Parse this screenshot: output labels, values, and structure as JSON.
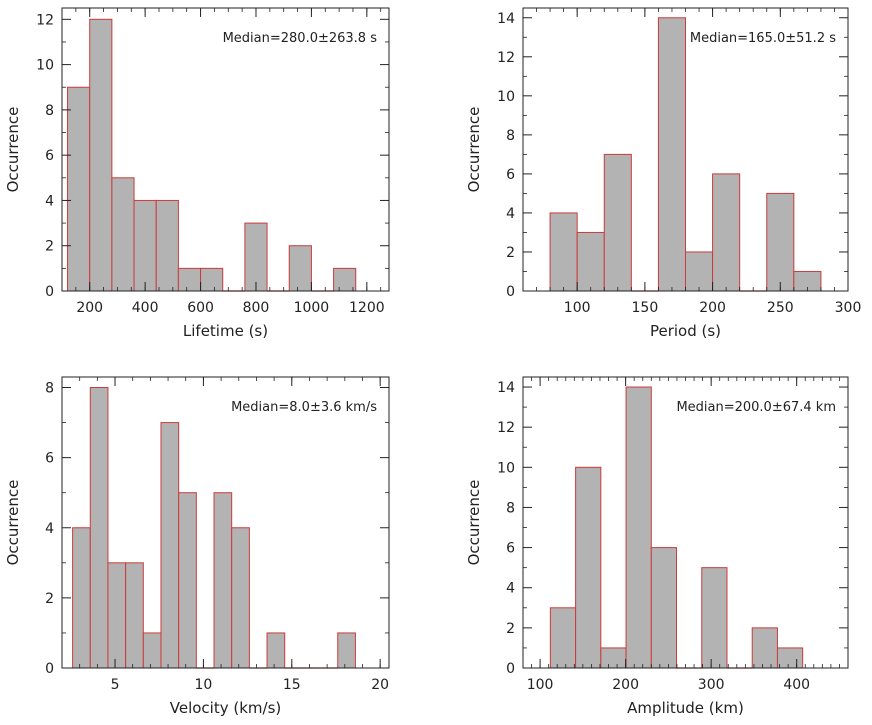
{
  "chart_data": [
    {
      "type": "bar",
      "xlabel": "Lifetime (s)",
      "ylabel": "Occurrence",
      "annotation": "Median=280.0±263.8 s",
      "xlim": [
        100,
        1280
      ],
      "ylim": [
        0,
        12.5
      ],
      "xticks": [
        200,
        400,
        600,
        800,
        1000,
        1200
      ],
      "xtick_labels": [
        "200",
        "400",
        "600",
        "800",
        "1000",
        "1200"
      ],
      "xminor": 50,
      "yticks": [
        0,
        2,
        4,
        6,
        8,
        10,
        12
      ],
      "ytick_labels": [
        "0",
        "2",
        "4",
        "6",
        "8",
        "10",
        "12"
      ],
      "bin_start": 120,
      "bin_width": 80,
      "values": [
        9,
        12,
        5,
        4,
        4,
        1,
        1,
        0,
        3,
        0,
        2,
        0,
        1
      ]
    },
    {
      "type": "bar",
      "xlabel": "Period (s)",
      "ylabel": "Occurrence",
      "annotation": "Median=165.0±51.2 s",
      "xlim": [
        60,
        300
      ],
      "ylim": [
        0,
        14.5
      ],
      "xticks": [
        100,
        150,
        200,
        250,
        300
      ],
      "xtick_labels": [
        "100",
        "150",
        "200",
        "250",
        "300"
      ],
      "xminor": 10,
      "yticks": [
        0,
        2,
        4,
        6,
        8,
        10,
        12,
        14
      ],
      "ytick_labels": [
        "0",
        "2",
        "4",
        "6",
        "8",
        "10",
        "12",
        "14"
      ],
      "bin_start": 80,
      "bin_width": 20,
      "values": [
        4,
        3,
        7,
        0,
        14,
        2,
        6,
        0,
        5,
        1
      ]
    },
    {
      "type": "bar",
      "xlabel": "Velocity (km/s)",
      "ylabel": "Occurrence",
      "annotation": "Median=8.0±3.6 km/s",
      "xlim": [
        2,
        20.5
      ],
      "ylim": [
        0,
        8.3
      ],
      "xticks": [
        5,
        10,
        15,
        20
      ],
      "xtick_labels": [
        "5",
        "10",
        "15",
        "20"
      ],
      "xminor": 1,
      "yticks": [
        0,
        2,
        4,
        6,
        8
      ],
      "ytick_labels": [
        "0",
        "2",
        "4",
        "6",
        "8"
      ],
      "bin_start": 2.6,
      "bin_width": 1.0,
      "values": [
        4,
        8,
        3,
        3,
        1,
        7,
        5,
        0,
        5,
        4,
        0,
        1,
        0,
        0,
        0,
        1
      ]
    },
    {
      "type": "bar",
      "xlabel": "Amplitude (km)",
      "ylabel": "Occurrence",
      "annotation": "Median=200.0±67.4 km",
      "xlim": [
        80,
        460
      ],
      "ylim": [
        0,
        14.5
      ],
      "xticks": [
        100,
        200,
        300,
        400
      ],
      "xtick_labels": [
        "100",
        "200",
        "300",
        "400"
      ],
      "xminor": 10,
      "yticks": [
        0,
        2,
        4,
        6,
        8,
        10,
        12,
        14
      ],
      "ytick_labels": [
        "0",
        "2",
        "4",
        "6",
        "8",
        "10",
        "12",
        "14"
      ],
      "bin_start": 112,
      "bin_width": 29.5,
      "values": [
        3,
        10,
        1,
        14,
        6,
        0,
        5,
        0,
        2,
        1
      ]
    }
  ]
}
